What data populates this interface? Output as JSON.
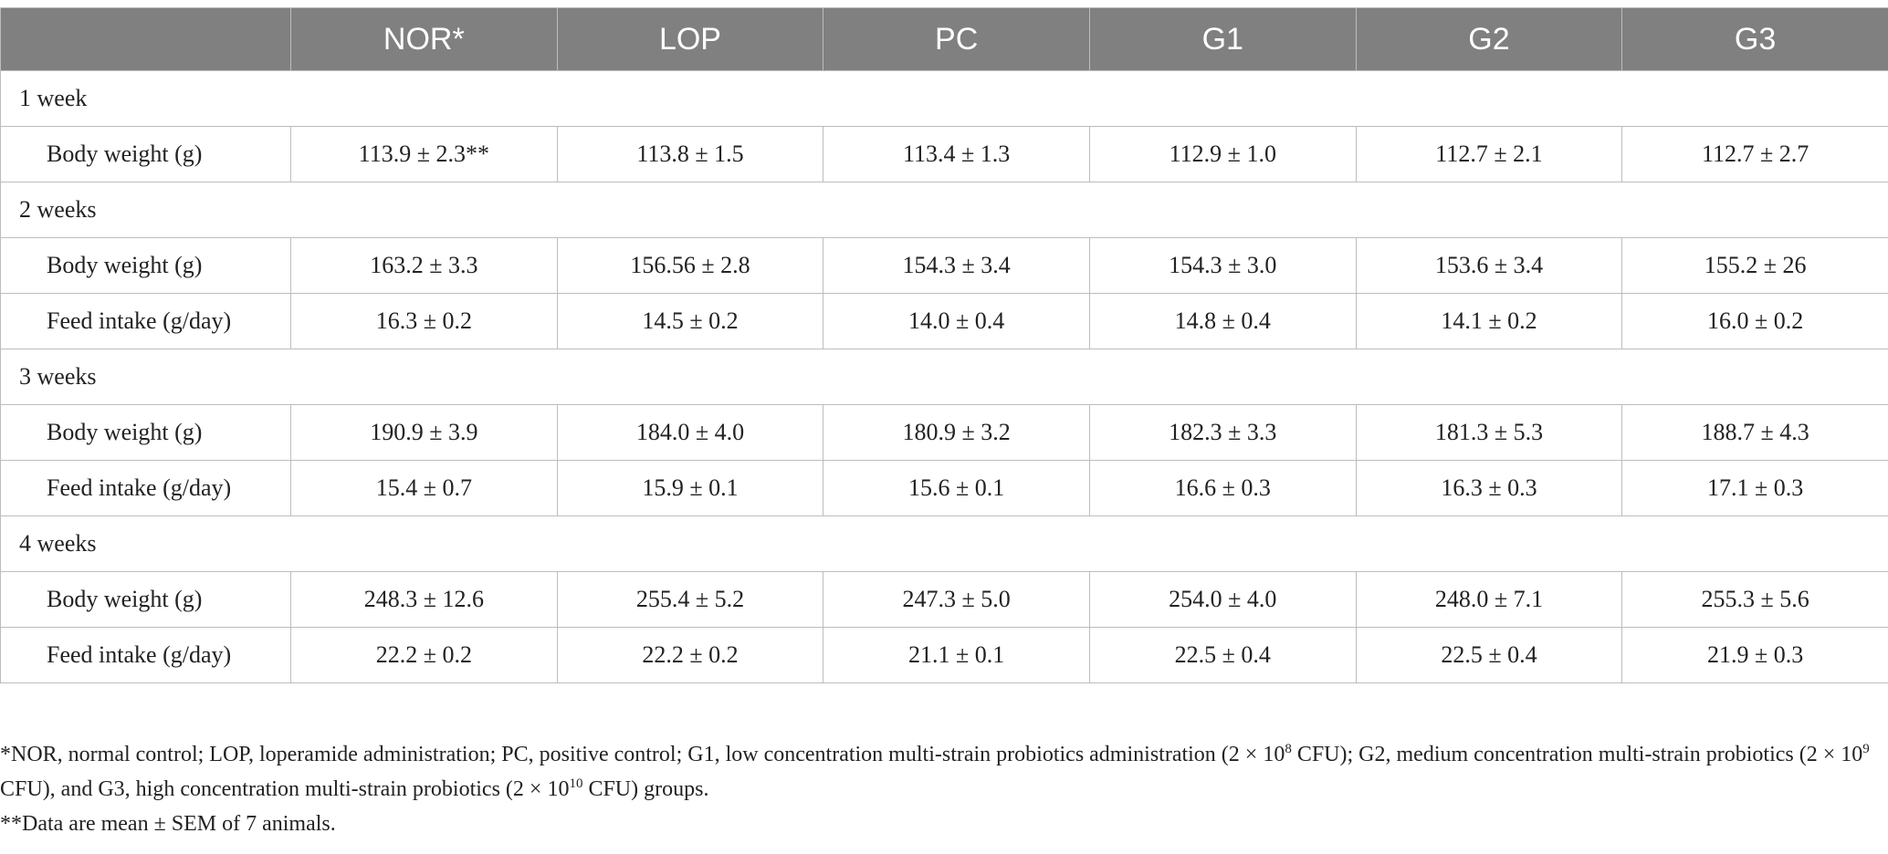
{
  "table": {
    "columns": [
      "",
      "NOR*",
      "LOP",
      "PC",
      "G1",
      "G2",
      "G3"
    ],
    "sections": [
      {
        "title": "1 week",
        "rows": [
          {
            "label": "Body weight (g)",
            "values": [
              "113.9 ± 2.3**",
              "113.8 ± 1.5",
              "113.4 ± 1.3",
              "112.9 ± 1.0",
              "112.7 ± 2.1",
              "112.7 ± 2.7"
            ]
          }
        ]
      },
      {
        "title": "2 weeks",
        "rows": [
          {
            "label": "Body weight (g)",
            "values": [
              "163.2 ± 3.3",
              "156.56 ± 2.8",
              "154.3 ± 3.4",
              "154.3 ± 3.0",
              "153.6 ± 3.4",
              "155.2 ± 26"
            ]
          },
          {
            "label": "Feed intake (g/day)",
            "values": [
              "16.3 ± 0.2",
              "14.5 ± 0.2",
              "14.0 ± 0.4",
              "14.8 ± 0.4",
              "14.1 ± 0.2",
              "16.0 ± 0.2"
            ]
          }
        ]
      },
      {
        "title": "3 weeks",
        "rows": [
          {
            "label": "Body weight (g)",
            "values": [
              "190.9 ± 3.9",
              "184.0 ± 4.0",
              "180.9 ± 3.2",
              "182.3 ± 3.3",
              "181.3 ± 5.3",
              "188.7 ± 4.3"
            ]
          },
          {
            "label": "Feed intake (g/day)",
            "values": [
              "15.4 ± 0.7",
              "15.9 ± 0.1",
              "15.6 ± 0.1",
              "16.6 ± 0.3",
              "16.3 ± 0.3",
              "17.1 ± 0.3"
            ]
          }
        ]
      },
      {
        "title": "4 weeks",
        "rows": [
          {
            "label": "Body weight (g)",
            "values": [
              "248.3 ± 12.6",
              "255.4 ± 5.2",
              "247.3 ± 5.0",
              "254.0 ± 4.0",
              "248.0 ± 7.1",
              "255.3 ± 5.6"
            ]
          },
          {
            "label": "Feed intake (g/day)",
            "values": [
              "22.2 ± 0.2",
              "22.2 ± 0.2",
              "21.1 ± 0.1",
              "22.5 ± 0.4",
              "22.5 ± 0.4",
              "21.9 ± 0.3"
            ]
          }
        ]
      }
    ]
  },
  "footnotes": {
    "note1": {
      "t1": "*NOR, normal control; LOP, loperamide administration; PC, positive control; G1, low concentration multi-strain probiotics administration (2 × 10",
      "e1": "8",
      "t2": " CFU); G2, medium concentration multi-strain probiotics (2 × 10",
      "e2": "9",
      "t3": " CFU), and G3, high concentration multi-strain probiotics (2 × 10",
      "e3": "10",
      "t4": " CFU) groups."
    },
    "note2": "**Data are mean ± SEM of 7 animals."
  }
}
